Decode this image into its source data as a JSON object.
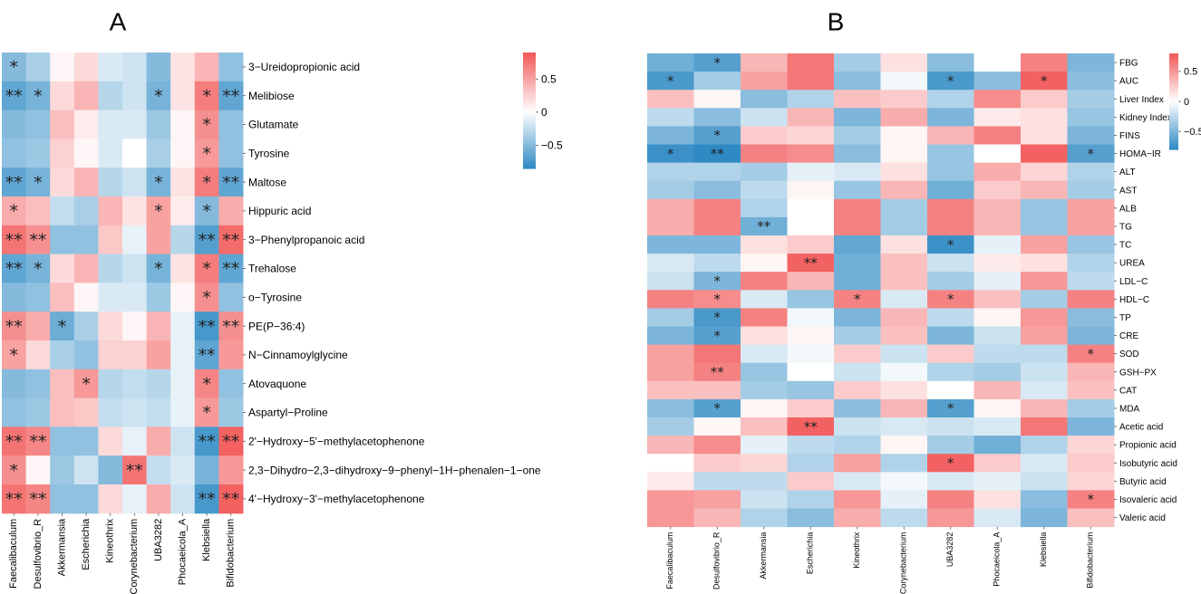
{
  "chart_data": [
    {
      "type": "heatmap",
      "panel": "A",
      "columns": [
        "Faecalibaculum",
        "Desulfovibrio_R",
        "Akkermansia",
        "Escherichia",
        "Kineothrix",
        "Corynebacterium",
        "UBA3282",
        "Phocaeicola_A",
        "Klebsiella",
        "Bifidobacterium"
      ],
      "rows": [
        "3−Ureidopropionic acid",
        "Melibiose",
        "Glutamate",
        "Tyrosine",
        "Maltose",
        "Hippuric acid",
        "3−Phenylpropanoic acid",
        "Trehalose",
        "o−Tyrosine",
        "PE(P−36:4)",
        "N−Cinnamoylglycine",
        "Atovaquone",
        "Aspartyl−Proline",
        "2'−Hydroxy−5'−methylacetophenone",
        "2,3−Dihydro−2,3−dihydroxy−9−phenyl−1H−phenalen−1−one",
        "4'−Hydroxy−3'−methylacetophenone"
      ],
      "values": [
        [
          -0.5,
          -0.35,
          0.05,
          0.2,
          -0.15,
          -0.2,
          -0.5,
          0.15,
          0.4,
          -0.45
        ],
        [
          -0.65,
          -0.55,
          0.2,
          0.4,
          -0.3,
          -0.2,
          -0.55,
          0.15,
          0.7,
          -0.65
        ],
        [
          -0.5,
          -0.45,
          0.35,
          0.1,
          -0.15,
          -0.15,
          -0.4,
          0.05,
          0.6,
          -0.45
        ],
        [
          -0.45,
          -0.4,
          0.25,
          0.05,
          -0.15,
          0.0,
          -0.35,
          0.05,
          0.55,
          -0.45
        ],
        [
          -0.65,
          -0.55,
          0.2,
          0.4,
          -0.3,
          -0.2,
          -0.55,
          0.15,
          0.7,
          -0.65
        ],
        [
          0.45,
          0.35,
          -0.25,
          -0.35,
          0.4,
          0.15,
          0.5,
          0.1,
          -0.5,
          0.45
        ],
        [
          0.75,
          0.6,
          -0.45,
          -0.45,
          0.3,
          -0.1,
          0.5,
          -0.3,
          -0.7,
          0.8
        ],
        [
          -0.65,
          -0.55,
          0.2,
          0.4,
          -0.3,
          -0.2,
          -0.55,
          0.15,
          0.7,
          -0.65
        ],
        [
          -0.5,
          -0.45,
          0.35,
          0.05,
          -0.15,
          -0.15,
          -0.4,
          0.05,
          0.6,
          -0.45
        ],
        [
          0.6,
          0.45,
          -0.6,
          -0.35,
          0.2,
          0.05,
          0.4,
          -0.1,
          -0.75,
          0.6
        ],
        [
          0.5,
          0.2,
          -0.35,
          -0.45,
          0.25,
          0.25,
          0.5,
          -0.1,
          -0.65,
          0.55
        ],
        [
          -0.5,
          -0.45,
          0.35,
          0.55,
          -0.3,
          -0.25,
          -0.3,
          -0.1,
          0.65,
          -0.45
        ],
        [
          -0.45,
          -0.4,
          0.35,
          0.3,
          -0.25,
          -0.2,
          -0.25,
          -0.1,
          0.55,
          -0.4
        ],
        [
          0.75,
          0.65,
          -0.45,
          -0.45,
          0.2,
          -0.1,
          0.45,
          -0.2,
          -0.75,
          0.85
        ],
        [
          0.6,
          0.05,
          -0.4,
          -0.2,
          -0.5,
          0.75,
          -0.25,
          -0.15,
          -0.55,
          0.55
        ],
        [
          0.75,
          0.65,
          -0.45,
          -0.45,
          0.2,
          -0.1,
          0.45,
          -0.2,
          -0.75,
          0.85
        ]
      ],
      "stars": [
        [
          "*",
          "",
          "",
          "",
          "",
          "",
          "",
          "",
          "",
          ""
        ],
        [
          "**",
          "*",
          "",
          "",
          "",
          "",
          "*",
          "",
          "*",
          "**"
        ],
        [
          "",
          "",
          "",
          "",
          "",
          "",
          "",
          "",
          "*",
          ""
        ],
        [
          "",
          "",
          "",
          "",
          "",
          "",
          "",
          "",
          "*",
          ""
        ],
        [
          "**",
          "*",
          "",
          "",
          "",
          "",
          "*",
          "",
          "*",
          "**"
        ],
        [
          "*",
          "",
          "",
          "",
          "",
          "",
          "*",
          "",
          "*",
          ""
        ],
        [
          "**",
          "**",
          "",
          "",
          "",
          "",
          "",
          "",
          "**",
          "**"
        ],
        [
          "**",
          "*",
          "",
          "",
          "",
          "",
          "*",
          "",
          "*",
          "**"
        ],
        [
          "",
          "",
          "",
          "",
          "",
          "",
          "",
          "",
          "*",
          ""
        ],
        [
          "**",
          "",
          "*",
          "",
          "",
          "",
          "",
          "",
          "**",
          "**"
        ],
        [
          "*",
          "",
          "",
          "",
          "",
          "",
          "",
          "",
          "**",
          ""
        ],
        [
          "",
          "",
          "",
          "*",
          "",
          "",
          "",
          "",
          "*",
          ""
        ],
        [
          "",
          "",
          "",
          "",
          "",
          "",
          "",
          "",
          "*",
          ""
        ],
        [
          "**",
          "**",
          "",
          "",
          "",
          "",
          "",
          "",
          "**",
          "**"
        ],
        [
          "*",
          "",
          "",
          "",
          "",
          "**",
          "",
          "",
          "",
          ""
        ],
        [
          "**",
          "**",
          "",
          "",
          "",
          "",
          "",
          "",
          "**",
          "**"
        ]
      ],
      "legend": {
        "ticks": [
          0.5,
          0,
          -0.5
        ],
        "tick_labels": [
          "0.5",
          "0",
          "−0.5"
        ],
        "range": [
          -0.85,
          0.9
        ]
      }
    },
    {
      "type": "heatmap",
      "panel": "B",
      "columns": [
        "Faecalibaculum",
        "Desulfovibrio_R",
        "Akkermansia",
        "Escherichia",
        "Kineothrix",
        "Corynebacterium",
        "UBA3282",
        "Phocaeicola_A",
        "Klebsiella",
        "Bifidobacterium"
      ],
      "rows": [
        "FBG",
        "AUC",
        "Liver Index",
        "Kidney Index",
        "FINS",
        "HOMA−IR",
        "ALT",
        "AST",
        "ALB",
        "TG",
        "TC",
        "UREA",
        "LDL−C",
        "HDL−C",
        "TP",
        "CRE",
        "SOD",
        "GSH−PX",
        "CAT",
        "MDA",
        "Acetic acid",
        "Propionic acid",
        "Isobutyric acid",
        "Butyric acid",
        "Isovaleric acid",
        "Valeric acid"
      ],
      "values": [
        [
          -0.55,
          -0.65,
          0.35,
          0.65,
          -0.35,
          0.15,
          -0.45,
          0.0,
          0.6,
          -0.5
        ],
        [
          -0.7,
          -0.35,
          0.45,
          0.65,
          -0.45,
          -0.05,
          -0.7,
          -0.45,
          0.75,
          -0.45
        ],
        [
          0.3,
          0.05,
          -0.45,
          -0.3,
          0.3,
          0.25,
          -0.3,
          0.55,
          0.25,
          -0.35
        ],
        [
          -0.25,
          -0.45,
          -0.2,
          0.35,
          -0.5,
          0.4,
          -0.5,
          0.1,
          0.15,
          -0.4
        ],
        [
          -0.5,
          -0.65,
          0.25,
          0.2,
          -0.35,
          0.05,
          0.35,
          0.6,
          0.15,
          -0.5
        ],
        [
          -0.75,
          -0.8,
          0.6,
          0.55,
          -0.45,
          0.05,
          -0.4,
          0.0,
          0.75,
          -0.65
        ],
        [
          -0.3,
          -0.3,
          -0.35,
          -0.1,
          -0.15,
          0.15,
          -0.4,
          0.4,
          0.2,
          -0.3
        ],
        [
          -0.35,
          -0.45,
          -0.25,
          0.05,
          -0.4,
          0.35,
          -0.55,
          0.25,
          0.35,
          -0.35
        ],
        [
          0.4,
          0.6,
          -0.3,
          0.0,
          0.6,
          -0.35,
          0.6,
          0.35,
          -0.4,
          0.45
        ],
        [
          0.4,
          0.6,
          -0.55,
          0.0,
          0.6,
          -0.35,
          0.6,
          0.35,
          -0.4,
          0.45
        ],
        [
          -0.5,
          -0.5,
          0.15,
          0.25,
          -0.6,
          0.15,
          -0.75,
          -0.1,
          0.45,
          -0.4
        ],
        [
          -0.15,
          -0.25,
          0.05,
          0.75,
          -0.55,
          0.3,
          -0.2,
          0.1,
          0.15,
          -0.3
        ],
        [
          -0.2,
          -0.5,
          0.6,
          0.35,
          -0.55,
          0.3,
          -0.35,
          -0.1,
          0.5,
          -0.25
        ],
        [
          0.6,
          0.55,
          -0.15,
          -0.4,
          0.6,
          -0.15,
          0.6,
          0.3,
          -0.35,
          0.6
        ],
        [
          -0.35,
          -0.7,
          0.6,
          -0.05,
          -0.5,
          0.35,
          -0.25,
          0.05,
          0.5,
          -0.45
        ],
        [
          -0.5,
          -0.65,
          0.15,
          0.05,
          -0.35,
          0.3,
          -0.5,
          -0.2,
          0.45,
          -0.5
        ],
        [
          0.45,
          0.65,
          -0.15,
          -0.05,
          0.25,
          -0.2,
          0.25,
          -0.25,
          -0.25,
          0.6
        ],
        [
          0.45,
          0.6,
          -0.4,
          0.0,
          -0.2,
          -0.05,
          -0.3,
          -0.35,
          -0.2,
          0.35
        ],
        [
          0.3,
          0.3,
          -0.35,
          -0.4,
          0.25,
          0.15,
          0.0,
          0.35,
          -0.15,
          0.3
        ],
        [
          -0.45,
          -0.65,
          0.05,
          0.25,
          -0.45,
          0.35,
          -0.65,
          0.05,
          0.35,
          -0.35
        ],
        [
          -0.35,
          0.05,
          0.3,
          0.75,
          -0.2,
          -0.15,
          -0.2,
          -0.15,
          0.65,
          -0.5
        ],
        [
          0.35,
          0.55,
          -0.1,
          -0.25,
          -0.3,
          0.05,
          -0.35,
          -0.55,
          -0.3,
          0.2
        ],
        [
          0.0,
          0.25,
          0.2,
          -0.3,
          0.45,
          -0.3,
          0.75,
          0.25,
          -0.15,
          0.25
        ],
        [
          0.1,
          -0.25,
          -0.25,
          0.25,
          -0.15,
          -0.05,
          -0.15,
          -0.1,
          -0.2,
          0.2
        ],
        [
          0.5,
          0.45,
          -0.2,
          -0.3,
          0.5,
          -0.1,
          0.6,
          0.15,
          -0.45,
          0.6
        ],
        [
          0.5,
          0.35,
          -0.3,
          -0.45,
          0.4,
          -0.25,
          0.5,
          -0.15,
          -0.5,
          0.3
        ]
      ],
      "stars": [
        [
          "",
          "*",
          "",
          "",
          "",
          "",
          "",
          "",
          "",
          ""
        ],
        [
          "*",
          "",
          "",
          "",
          "",
          "",
          "*",
          "",
          "*",
          ""
        ],
        [
          "",
          "",
          "",
          "",
          "",
          "",
          "",
          "",
          "",
          ""
        ],
        [
          "",
          "",
          "",
          "",
          "",
          "",
          "",
          "",
          "",
          ""
        ],
        [
          "",
          "*",
          "",
          "",
          "",
          "",
          "",
          "",
          "",
          ""
        ],
        [
          "*",
          "**",
          "",
          "",
          "",
          "",
          "",
          "",
          "",
          "*"
        ],
        [
          "",
          "",
          "",
          "",
          "",
          "",
          "",
          "",
          "",
          ""
        ],
        [
          "",
          "",
          "",
          "",
          "",
          "",
          "",
          "",
          "",
          ""
        ],
        [
          "",
          "",
          "",
          "",
          "",
          "",
          "",
          "",
          "",
          ""
        ],
        [
          "",
          "",
          "**",
          "",
          "",
          "",
          "",
          "",
          "",
          ""
        ],
        [
          "",
          "",
          "",
          "",
          "",
          "",
          "*",
          "",
          "",
          ""
        ],
        [
          "",
          "",
          "",
          "**",
          "",
          "",
          "",
          "",
          "",
          ""
        ],
        [
          "",
          "*",
          "",
          "",
          "",
          "",
          "",
          "",
          "",
          ""
        ],
        [
          "",
          "*",
          "",
          "",
          "*",
          "",
          "*",
          "",
          "",
          ""
        ],
        [
          "",
          "*",
          "",
          "",
          "",
          "",
          "",
          "",
          "",
          ""
        ],
        [
          "",
          "*",
          "",
          "",
          "",
          "",
          "",
          "",
          "",
          ""
        ],
        [
          "",
          "",
          "",
          "",
          "",
          "",
          "",
          "",
          "",
          "*"
        ],
        [
          "",
          "**",
          "",
          "",
          "",
          "",
          "",
          "",
          "",
          ""
        ],
        [
          "",
          "",
          "",
          "",
          "",
          "",
          "",
          "",
          "",
          ""
        ],
        [
          "",
          "*",
          "",
          "",
          "",
          "",
          "*",
          "",
          "",
          ""
        ],
        [
          "",
          "",
          "",
          "**",
          "",
          "",
          "",
          "",
          "",
          ""
        ],
        [
          "",
          "",
          "",
          "",
          "",
          "",
          "",
          "",
          "",
          ""
        ],
        [
          "",
          "",
          "",
          "",
          "",
          "",
          "*",
          "",
          "",
          ""
        ],
        [
          "",
          "",
          "",
          "",
          "",
          "",
          "",
          "",
          "",
          ""
        ],
        [
          "",
          "",
          "",
          "",
          "",
          "",
          "",
          "",
          "",
          "*"
        ],
        [
          "",
          "",
          "",
          "",
          "",
          "",
          "",
          "",
          "",
          ""
        ]
      ],
      "legend": {
        "ticks": [
          0.5,
          0,
          -0.5
        ],
        "tick_labels": [
          "0.5",
          "0",
          "−0.5"
        ],
        "range": [
          -0.8,
          0.8
        ]
      }
    }
  ],
  "colors": {
    "negative": "#2f8ac4",
    "neutral": "#ffffff",
    "positive": "#f25858"
  }
}
